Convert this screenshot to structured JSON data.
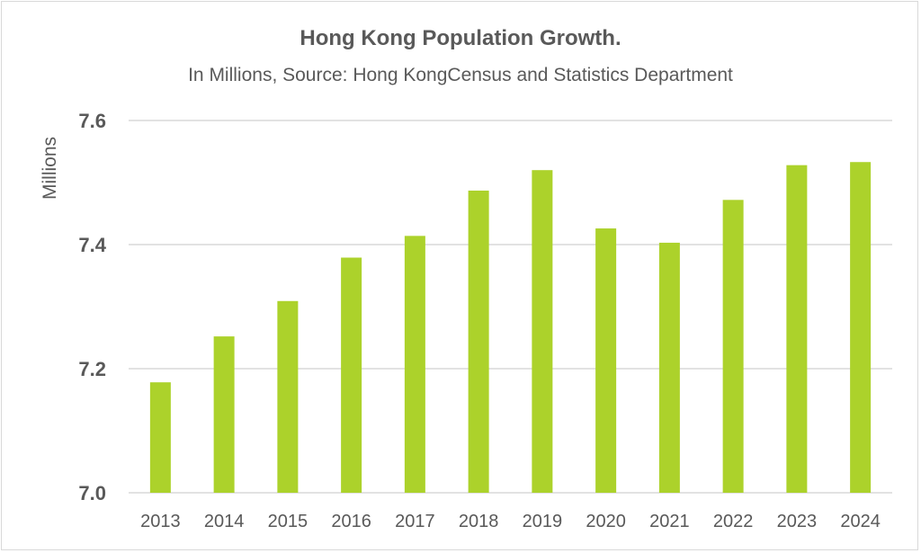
{
  "chart_data": {
    "type": "bar",
    "title": "Hong Kong Population Growth.",
    "subtitle": "In Millions, Source: Hong KongCensus and Statistics Department",
    "xlabel": "",
    "ylabel": "Millions",
    "ylim": [
      7.0,
      7.6
    ],
    "yticks": [
      "7.0",
      "7.2",
      "7.4",
      "7.6"
    ],
    "ytick_values": [
      7.0,
      7.2,
      7.4,
      7.6
    ],
    "grid": true,
    "bar_color": "#acd22b",
    "categories": [
      "2013",
      "2014",
      "2015",
      "2016",
      "2017",
      "2018",
      "2019",
      "2020",
      "2021",
      "2022",
      "2023",
      "2024"
    ],
    "values": [
      7.178,
      7.252,
      7.309,
      7.379,
      7.414,
      7.487,
      7.52,
      7.426,
      7.403,
      7.472,
      7.528,
      7.533
    ]
  }
}
